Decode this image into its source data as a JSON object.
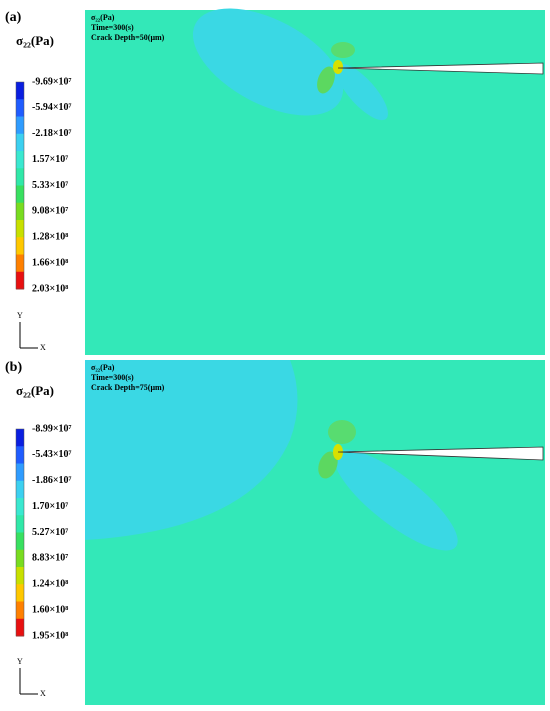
{
  "panels": [
    {
      "label": "(a)",
      "legend_title": "σ₂₂(Pa)",
      "legend_labels": [
        "-9.69×10⁷",
        "-5.94×10⁷",
        "-2.18×10⁷",
        "1.57×10⁷",
        "5.33×10⁷",
        "9.08×10⁷",
        "1.28×10⁸",
        "1.66×10⁸",
        "2.03×10⁸"
      ],
      "axis_y": "Y",
      "axis_x": "X",
      "plot_text": [
        "σ₂₂(Pa)",
        "Time=300(s)",
        "Crack Depth=50(μm)"
      ]
    },
    {
      "label": "(b)",
      "legend_title": "σ₂₂(Pa)",
      "legend_labels": [
        "-8.99×10⁷",
        "-5.43×10⁷",
        "-1.86×10⁷",
        "1.70×10⁷",
        "5.27×10⁷",
        "8.83×10⁷",
        "1.24×10⁸",
        "1.60×10⁸",
        "1.95×10⁸"
      ],
      "axis_y": "Y",
      "axis_x": "X",
      "plot_text": [
        "σ₂₂(Pa)",
        "Time=300(s)",
        "Crack Depth=75(μm)"
      ]
    }
  ]
}
